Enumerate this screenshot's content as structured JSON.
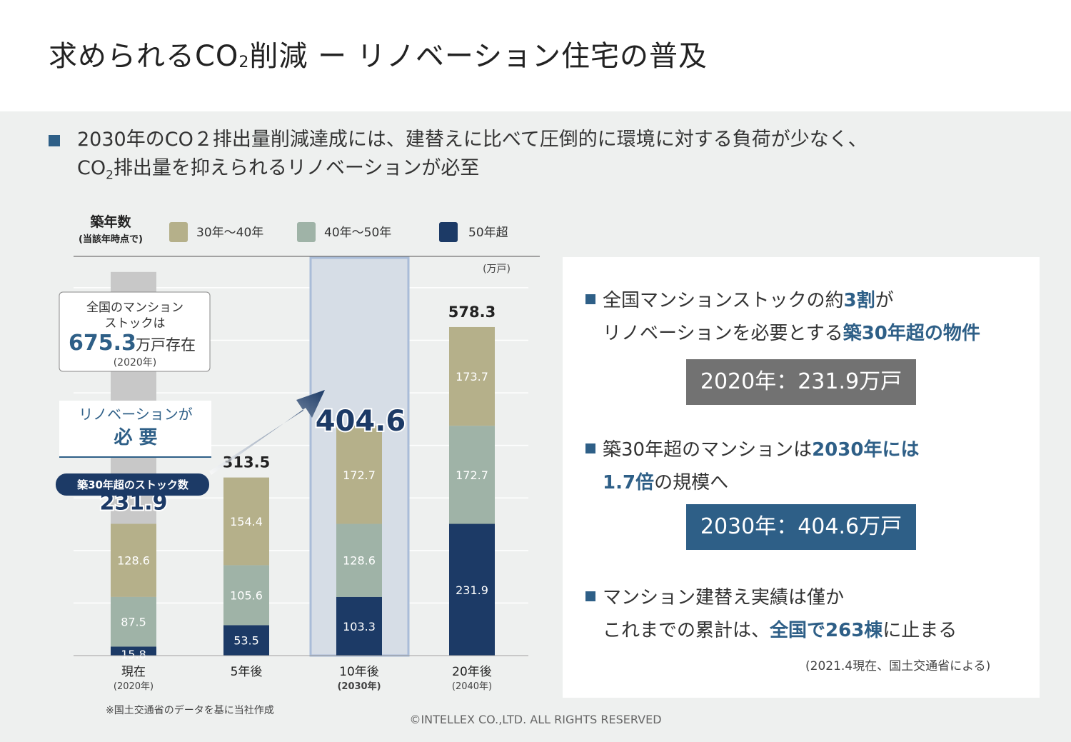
{
  "title": {
    "pre": "求められるCO",
    "sub": "2",
    "post": "削減 ー リノベーション住宅の普及"
  },
  "lead": {
    "line1": "2030年のCO２排出量削減達成には、建替えに比べて圧倒的に環境に対する負荷が少なく、",
    "line2_pre": "CO",
    "line2_sub": "2",
    "line2_post": "排出量を抑えられるリノベーションが必至"
  },
  "legend": {
    "heading": "築年数",
    "subheading": "(当該年時点で)",
    "items": [
      "30年～40年",
      "40年～50年",
      "50年超"
    ]
  },
  "unit": "(万戸)",
  "callout": {
    "line1": "全国のマンション",
    "line2": "ストックは",
    "value": "675.3",
    "suffix": "万戸存在",
    "year": "(2020年)"
  },
  "renov": {
    "line1": "リノベーションが",
    "line2": "必 要"
  },
  "pill": "築30年超のストック数",
  "arrow_value": "404.6",
  "colors": {
    "band_30_40": "#b5b08a",
    "band_40_50": "#9fb3a7",
    "band_50plus": "#1c3a66",
    "accent": "#2e5f87"
  },
  "chart_data": {
    "type": "bar",
    "stacked": true,
    "categories": [
      "現在",
      "5年後",
      "10年後",
      "20年後"
    ],
    "category_sub": [
      "(2020年)",
      "",
      "(2030年)",
      "(2040年)"
    ],
    "series": [
      {
        "name": "50年超",
        "values": [
          15.8,
          53.5,
          103.3,
          231.9
        ]
      },
      {
        "name": "40年～50年",
        "values": [
          87.5,
          105.6,
          128.6,
          172.7
        ]
      },
      {
        "name": "30年～40年",
        "values": [
          128.6,
          154.4,
          172.7,
          173.7
        ]
      }
    ],
    "totals": [
      "231.9",
      "313.5",
      "404.6",
      "578.3"
    ],
    "total_stock": 675.3,
    "highlight_category": "10年後",
    "grid": true
  },
  "panel": {
    "p1_a": "全国マンションストックの約",
    "p1_b": "3割",
    "p1_c": "が",
    "p1_d": "リノベーションを必要とする",
    "p1_e": "築30年超の物件",
    "box1": "2020年：231.9万戸",
    "p2_a": "築30年超のマンションは",
    "p2_b": "2030年には",
    "p2_c": "1.7倍",
    "p2_d": "の規模へ",
    "box2": "2030年：404.6万戸",
    "p3_a": "マンション建替え実績は僅か",
    "p3_b": "これまでの累計は、",
    "p3_c": "全国で263棟",
    "p3_d": "に止まる",
    "source": "(2021.4現在、国土交通省による)"
  },
  "footnote": "※国土交通省のデータを基に当社作成",
  "copyright": "©INTELLEX CO.,LTD. ALL RIGHTS RESERVED"
}
